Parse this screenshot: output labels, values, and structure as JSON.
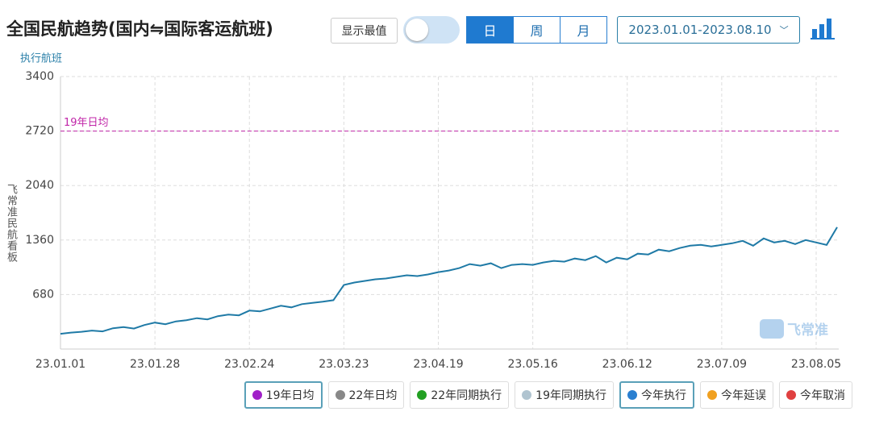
{
  "ui": {
    "title": "全国民航趋势(国内⇋国际客运航班)",
    "show_extremes": "显示最值",
    "periods": [
      "日",
      "周",
      "月"
    ],
    "selected_period": 0,
    "date_range": "2023.01.01-2023.08.10",
    "side_label": "飞常准民航看板",
    "watermark": "飞常准"
  },
  "chart_data": {
    "type": "line",
    "y_label": "执行航班",
    "categories": [
      "23.01.01",
      null,
      null,
      null,
      null,
      null,
      null,
      null,
      null,
      "23.01.28",
      null,
      null,
      null,
      null,
      null,
      null,
      null,
      null,
      "23.02.24",
      null,
      null,
      null,
      null,
      null,
      null,
      null,
      null,
      "23.03.23",
      null,
      null,
      null,
      null,
      null,
      null,
      null,
      null,
      "23.04.19",
      null,
      null,
      null,
      null,
      null,
      null,
      null,
      null,
      "23.05.16",
      null,
      null,
      null,
      null,
      null,
      null,
      null,
      null,
      "23.06.12",
      null,
      null,
      null,
      null,
      null,
      null,
      null,
      null,
      "23.07.09",
      null,
      null,
      null,
      null,
      null,
      null,
      null,
      null,
      "23.08.05",
      null,
      null
    ],
    "series": [
      {
        "name": "今年执行",
        "color": "#1f7aa6",
        "values": [
          190,
          205,
          215,
          230,
          220,
          260,
          275,
          255,
          300,
          330,
          310,
          345,
          360,
          385,
          370,
          410,
          430,
          420,
          480,
          470,
          505,
          540,
          520,
          560,
          575,
          590,
          610,
          800,
          830,
          850,
          870,
          880,
          900,
          920,
          910,
          930,
          960,
          980,
          1010,
          1060,
          1040,
          1070,
          1010,
          1050,
          1060,
          1050,
          1080,
          1100,
          1090,
          1130,
          1110,
          1160,
          1080,
          1140,
          1120,
          1190,
          1180,
          1240,
          1220,
          1260,
          1290,
          1300,
          1280,
          1300,
          1320,
          1350,
          1290,
          1380,
          1330,
          1350,
          1310,
          1360,
          1330,
          1300,
          1520
        ]
      }
    ],
    "reference_lines": [
      {
        "label": "19年日均",
        "value": 2720,
        "color": "#c026a8"
      }
    ],
    "ylim": [
      0,
      3400
    ],
    "yticks": [
      680,
      1360,
      2040,
      2720,
      3400
    ],
    "grid": true,
    "legend": [
      {
        "name": "19年日均",
        "color": "#a020c8",
        "active": true
      },
      {
        "name": "22年日均",
        "color": "#888888",
        "active": false
      },
      {
        "name": "22年同期执行",
        "color": "#22a022",
        "active": false
      },
      {
        "name": "19年同期执行",
        "color": "#b0c4d0",
        "active": false
      },
      {
        "name": "今年执行",
        "color": "#2a7fd0",
        "active": true
      },
      {
        "name": "今年延误",
        "color": "#f0a020",
        "active": false
      },
      {
        "name": "今年取消",
        "color": "#e04040",
        "active": false
      }
    ]
  }
}
